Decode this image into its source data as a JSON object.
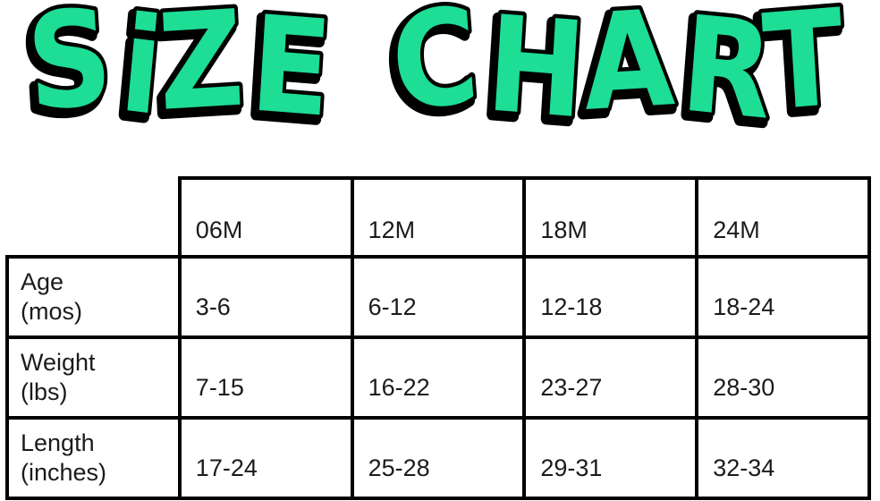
{
  "title": "SiZE CHART",
  "colors": {
    "title_fill": "#1EDD95",
    "title_outline": "#000000",
    "table_border": "#000000",
    "text": "#1b1b1b",
    "background": "#ffffff"
  },
  "table": {
    "corner_label": "",
    "columns": [
      "06M",
      "12M",
      "18M",
      "24M"
    ],
    "rows": [
      {
        "label_line1": "Age",
        "label_line2": "(mos)",
        "values": [
          "3-6",
          "6-12",
          "12-18",
          "18-24"
        ]
      },
      {
        "label_line1": "Weight",
        "label_line2": "(lbs)",
        "values": [
          "7-15",
          "16-22",
          "23-27",
          "28-30"
        ]
      },
      {
        "label_line1": "Length",
        "label_line2": "(inches)",
        "values": [
          "17-24",
          "25-28",
          "29-31",
          "32-34"
        ]
      }
    ]
  },
  "chart_data": {
    "type": "table",
    "title": "SIZE CHART",
    "columns": [
      "",
      "06M",
      "12M",
      "18M",
      "24M"
    ],
    "rows": [
      [
        "Age (mos)",
        "3-6",
        "6-12",
        "12-18",
        "18-24"
      ],
      [
        "Weight (lbs)",
        "7-15",
        "16-22",
        "23-27",
        "28-30"
      ],
      [
        "Length (inches)",
        "17-24",
        "25-28",
        "29-31",
        "32-34"
      ]
    ],
    "layout": {
      "corner_cell_borderless": true,
      "grid": "on",
      "border_color": "#000000",
      "title_color": "#1EDD95"
    }
  }
}
